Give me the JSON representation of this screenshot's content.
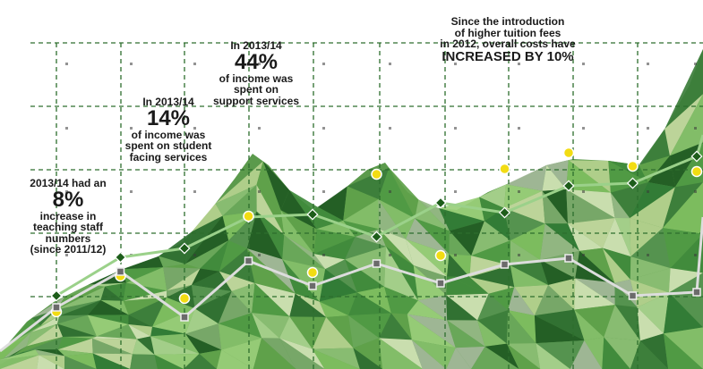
{
  "chart_data": {
    "type": "line",
    "title": "",
    "xlabel": "",
    "ylabel": "",
    "grid": true,
    "x": [
      1,
      2,
      3,
      4,
      5,
      6,
      7,
      8,
      9,
      10,
      11
    ],
    "series": [
      {
        "values": [
          82,
          125,
          135,
          170,
          173,
          148,
          186,
          175,
          205,
          208,
          238
        ]
      },
      {
        "values": [
          64,
          104,
          79,
          171,
          108,
          218,
          127,
          224,
          242,
          227,
          221
        ]
      },
      {
        "values": [
          69,
          109,
          58,
          121,
          93,
          118,
          96,
          117,
          124,
          82,
          86
        ]
      },
      {
        "values": [
          55,
          68,
          31,
          173,
          104,
          149,
          77,
          112,
          142,
          83,
          77
        ]
      }
    ],
    "colors": {
      "green_line": "#9bd18a",
      "grey_line": "#dddddd",
      "yellow_marker": "#f2dc13",
      "dark_marker": "#1d5d1a",
      "grid": "#2d6e2d"
    }
  },
  "annotations": {
    "a1": {
      "l1": "2013/14 had an",
      "big": "8%",
      "l2": "increase in",
      "l3": "teaching staff",
      "l4": "numbers",
      "l5": "(since 2011/12)"
    },
    "a2": {
      "l1": "In 2013/14",
      "big": "14%",
      "l2": "of income was",
      "l3": "spent on student",
      "l4": "facing services"
    },
    "a3": {
      "l1": "In 2013/14",
      "big": "44%",
      "l2": "of income was",
      "l3": "spent on",
      "l4": "support services"
    },
    "a4": {
      "l1": "Since the introduction",
      "l2": "of higher tuition fees",
      "l3": "in 2012, overall costs have",
      "hl": "INCREASED BY 10%"
    }
  }
}
